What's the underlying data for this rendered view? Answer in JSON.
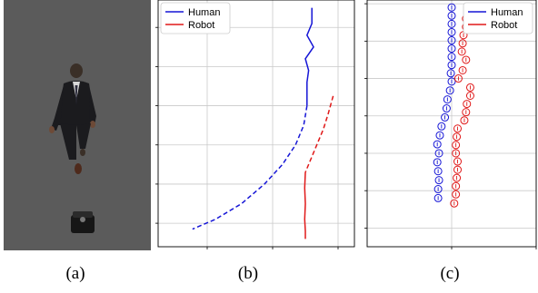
{
  "colors": {
    "human": "#1515d6",
    "robot": "#e01818",
    "grid": "#c9c9c9",
    "sim_floor": "#5b5b5b"
  },
  "captions": {
    "a": "(a)",
    "b": "(b)",
    "c": "(c)"
  },
  "panel_a": {
    "kind": "simulation-render",
    "content": "top-view of a walking human figure in a dark suit and a small dark robot below"
  },
  "chart_data": [
    {
      "panel": "b",
      "type": "line",
      "grid": true,
      "legend_placement": "top-left",
      "xlim": [
        -4.5,
        1.5
      ],
      "ylim": [
        -1.2,
        11.4
      ],
      "series": [
        {
          "name": "Human",
          "style": "solid",
          "x": [
            0.2,
            0.2,
            0.05,
            0.25,
            0.0,
            0.1,
            0.05,
            0.05,
            0.05
          ],
          "y": [
            11.0,
            10.2,
            9.6,
            9.0,
            8.4,
            7.8,
            7.2,
            6.6,
            6.0
          ]
        },
        {
          "name": "Human",
          "style": "dashed",
          "x": [
            0.05,
            -0.05,
            -0.3,
            -0.7,
            -1.25,
            -1.95,
            -2.75,
            -3.45
          ],
          "y": [
            6.0,
            5.0,
            4.0,
            3.0,
            2.0,
            1.0,
            0.2,
            -0.3
          ]
        },
        {
          "name": "Robot",
          "style": "dashed",
          "x": [
            0.85,
            0.7,
            0.55,
            0.35,
            0.15,
            0.0
          ],
          "y": [
            6.5,
            5.6,
            4.8,
            4.0,
            3.2,
            2.6
          ]
        },
        {
          "name": "Robot",
          "style": "solid",
          "x": [
            0.0,
            -0.02,
            0.0,
            -0.02,
            0.0,
            0.0
          ],
          "y": [
            2.6,
            1.8,
            1.0,
            0.2,
            -0.4,
            -0.8
          ]
        }
      ],
      "legend": [
        "Human",
        "Robot"
      ]
    },
    {
      "panel": "c",
      "type": "scatter",
      "marker": "circle-with-cross",
      "grid": true,
      "legend_placement": "top-right",
      "xlim": [
        -1.0,
        1.0
      ],
      "ylim": [
        0.0,
        6.6
      ],
      "series": [
        {
          "name": "Human",
          "x": [
            0.0,
            0.0,
            0.0,
            0.0,
            0.0,
            0.0,
            0.0,
            0.0,
            -0.01,
            0.0,
            -0.02,
            -0.05,
            -0.06,
            -0.08,
            -0.12,
            -0.14,
            -0.17,
            -0.15,
            -0.17,
            -0.16,
            -0.15,
            -0.16,
            -0.16
          ],
          "y": [
            6.4,
            6.18,
            5.96,
            5.74,
            5.52,
            5.3,
            5.08,
            4.86,
            4.64,
            4.42,
            4.18,
            3.94,
            3.7,
            3.46,
            3.22,
            2.98,
            2.74,
            2.5,
            2.26,
            2.02,
            1.78,
            1.54,
            1.3
          ]
        },
        {
          "name": "Robot",
          "x": [
            0.22,
            0.17,
            0.17,
            0.14,
            0.13,
            0.12,
            0.17,
            0.13,
            0.08,
            0.22,
            0.22,
            0.18,
            0.17,
            0.15,
            0.07,
            0.06,
            0.05,
            0.05,
            0.07,
            0.07,
            0.06,
            0.05,
            0.05,
            0.03
          ],
          "y": [
            6.3,
            6.1,
            5.88,
            5.66,
            5.44,
            5.22,
            5.0,
            4.72,
            4.5,
            4.26,
            4.04,
            3.82,
            3.6,
            3.38,
            3.16,
            2.94,
            2.72,
            2.5,
            2.28,
            2.06,
            1.84,
            1.62,
            1.4,
            1.16
          ]
        }
      ],
      "legend": [
        "Human",
        "Robot"
      ]
    }
  ]
}
